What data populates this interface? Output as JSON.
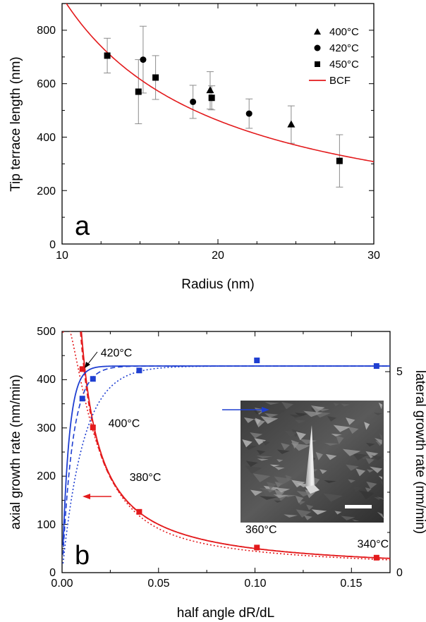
{
  "chart_data": [
    {
      "type": "scatter",
      "panel_label": "a",
      "xlabel": "Radius (nm)",
      "ylabel": "Tip terrace length (nm)",
      "xlim": [
        10,
        30
      ],
      "ylim": [
        0,
        900
      ],
      "xticks": [
        "10",
        "20",
        "30"
      ],
      "yticks": [
        "0",
        "200",
        "400",
        "600",
        "800"
      ],
      "legend_position": "top-right",
      "colors": {
        "bcf": "#e31a1c",
        "errorbar": "#8c8c8c",
        "marker": "#000000"
      },
      "series": [
        {
          "name": "400°C",
          "marker": "triangle",
          "points": [
            {
              "x": 19.5,
              "y": 575,
              "err": 70
            },
            {
              "x": 24.7,
              "y": 447,
              "err": 70
            }
          ]
        },
        {
          "name": "420°C",
          "marker": "circle",
          "points": [
            {
              "x": 15.2,
              "y": 690,
              "err": 125
            },
            {
              "x": 18.4,
              "y": 532,
              "err": 62
            },
            {
              "x": 22.0,
              "y": 488,
              "err": 55
            }
          ]
        },
        {
          "name": "450°C",
          "marker": "square",
          "points": [
            {
              "x": 12.9,
              "y": 705,
              "err": 65
            },
            {
              "x": 14.9,
              "y": 570,
              "err": 120
            },
            {
              "x": 16.0,
              "y": 623,
              "err": 82
            },
            {
              "x": 19.6,
              "y": 547,
              "err": 45
            },
            {
              "x": 27.8,
              "y": 311,
              "err": 98
            }
          ]
        }
      ],
      "fit": {
        "name": "BCF",
        "form": "y = A / x",
        "A": 9250
      }
    },
    {
      "type": "scatter",
      "panel_label": "b",
      "xlabel": "half angle dR/dL",
      "ylabel": "axial growth rate (nm/min)",
      "y2label": "lateral growth rate (nm/min)",
      "xlim": [
        0,
        0.17
      ],
      "ylim": [
        0,
        500
      ],
      "y2lim": [
        0,
        6
      ],
      "xticks": [
        "0.00",
        "0.05",
        "0.10",
        "0.15"
      ],
      "yticks": [
        "0",
        "100",
        "200",
        "300",
        "400",
        "500"
      ],
      "y2ticks": [
        "0",
        "5"
      ],
      "colors": {
        "axial": "#e31a1c",
        "lateral": "#1f3fd1"
      },
      "axial": {
        "points": [
          {
            "x": 0.0105,
            "y": 422
          },
          {
            "x": 0.016,
            "y": 301
          },
          {
            "x": 0.04,
            "y": 126
          },
          {
            "x": 0.101,
            "y": 52
          },
          {
            "x": 0.163,
            "y": 31
          }
        ]
      },
      "lateral": {
        "points": [
          {
            "x": 0.0105,
            "y": 4.33
          },
          {
            "x": 0.016,
            "y": 4.82
          },
          {
            "x": 0.04,
            "y": 5.03
          },
          {
            "x": 0.101,
            "y": 5.28
          },
          {
            "x": 0.163,
            "y": 5.14
          }
        ]
      },
      "annotations": [
        {
          "text": "420°C",
          "x": 0.02,
          "y": 448
        },
        {
          "text": "400°C",
          "x": 0.024,
          "y": 302
        },
        {
          "text": "380°C",
          "x": 0.035,
          "y": 190
        },
        {
          "text": "360°C",
          "x": 0.095,
          "y": 82
        },
        {
          "text": "340°C",
          "x": 0.153,
          "y": 52
        }
      ],
      "inset": {
        "kind": "SEM micrograph of a tapered nanowire tip with scale bar"
      }
    }
  ]
}
